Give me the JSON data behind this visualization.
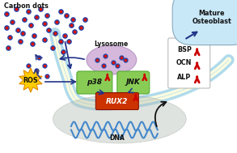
{
  "bg_color": "#ffffff",
  "membrane_outer_color": "#a8d8ea",
  "membrane_inner_color": "#fffde0",
  "membrane_lw_outer": 9,
  "membrane_lw_inner": 5,
  "nucleus_color": "#a8b8a8",
  "nucleus_alpha": 0.38,
  "lysosome_color": "#c8a0d0",
  "lysosome_alpha": 0.75,
  "p38_color": "#88cc55",
  "jnk_color": "#88cc55",
  "runx2_color": "#cc3300",
  "ros_color": "#ffcc00",
  "ros_edge_color": "#dd8800",
  "carbon_dot_outer": "#2244aa",
  "carbon_dot_inner": "#dd1100",
  "arrow_color": "#223388",
  "up_arrow_color": "#cc0000",
  "dna_color": "#4488cc",
  "carbon_dots_label": "Carbon dots",
  "lysosome_label": "Lysosome",
  "ros_label": "ROS",
  "p38_label": "p38",
  "jnk_label": "JNK",
  "runx2_label": "RUX2",
  "dna_label": "DNA",
  "mature_label": "Mature\nOsteoblast",
  "bsp_label": "BSP",
  "ocn_label": "OCN",
  "alp_label": "ALP",
  "mature_bg": "#c8e8f8",
  "mature_edge": "#88aabb"
}
